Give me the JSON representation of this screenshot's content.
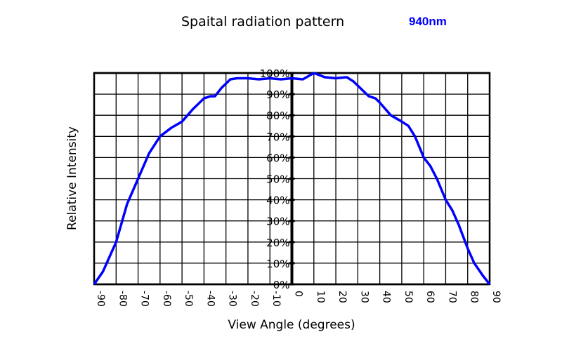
{
  "chart_data": {
    "type": "line",
    "title": "Spaital radiation pattern",
    "subtitle": "940nm",
    "xlabel": "View Angle (degrees)",
    "ylabel": "Relative Intensity",
    "xlim": [
      -90,
      90
    ],
    "ylim": [
      0,
      100
    ],
    "grid": true,
    "x_ticks": [
      "-90",
      "-80",
      "-70",
      "-60",
      "-50",
      "-40",
      "-30",
      "-20",
      "-10",
      "0",
      "10",
      "20",
      "30",
      "40",
      "50",
      "60",
      "70",
      "80",
      "90"
    ],
    "y_ticks": [
      "0%",
      "10%",
      "20%",
      "30%",
      "40%",
      "50%",
      "60%",
      "70%",
      "80%",
      "90%",
      "100%"
    ],
    "line_color": "#0000ff",
    "series": [
      {
        "x": [
          -90,
          -86,
          -80,
          -75,
          -70,
          -65,
          -60,
          -55,
          -50,
          -45,
          -40,
          -37,
          -35,
          -32,
          -28,
          -25,
          -20,
          -15,
          -10,
          -5,
          0,
          5,
          10,
          15,
          20,
          25,
          28,
          32,
          35,
          38,
          40,
          45,
          50,
          53,
          56,
          60,
          63,
          66,
          70,
          73,
          76,
          80,
          83,
          87,
          90
        ],
        "y": [
          0,
          6,
          20,
          38,
          50,
          62,
          70,
          74,
          77,
          83,
          88,
          89,
          89,
          93,
          97,
          97.5,
          97.5,
          97,
          97.5,
          97,
          97.5,
          97,
          100,
          98,
          97.5,
          98,
          96,
          92,
          89,
          88,
          86,
          80,
          77,
          75,
          70,
          60,
          56,
          50,
          40,
          35,
          28,
          17,
          10,
          4,
          0
        ]
      }
    ]
  }
}
